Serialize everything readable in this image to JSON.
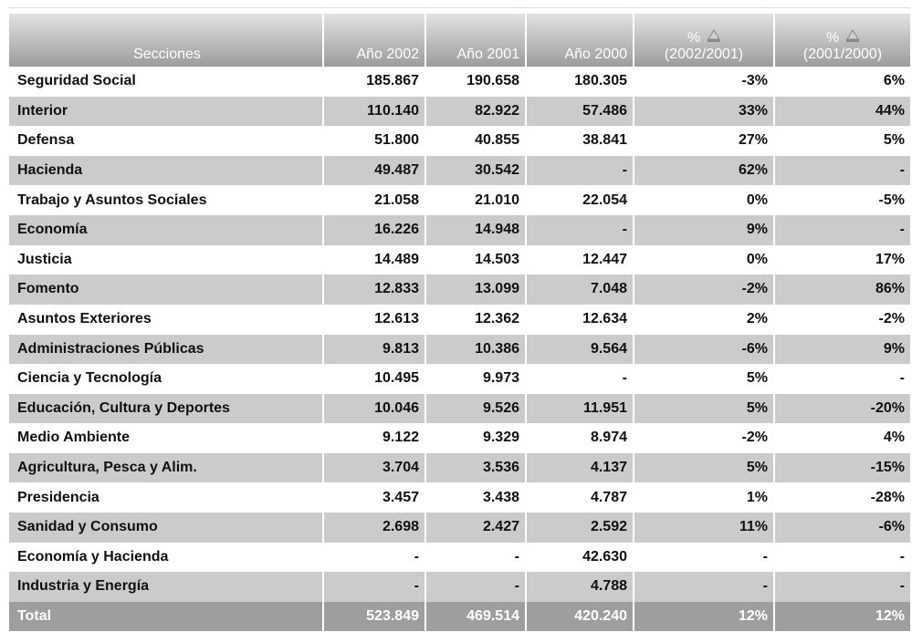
{
  "table": {
    "header": [
      "Secciones",
      "Año 2002",
      "Año 2001",
      "Año 2000"
    ],
    "change_columns": [
      {
        "symbol": "%",
        "period": "(2002/2001)"
      },
      {
        "symbol": "%",
        "period": "(2001/2000)"
      }
    ],
    "rows": [
      [
        "Seguridad Social",
        "185.867",
        "190.658",
        "180.305",
        "-3%",
        "6%"
      ],
      [
        "Interior",
        "110.140",
        "82.922",
        "57.486",
        "33%",
        "44%"
      ],
      [
        "Defensa",
        "51.800",
        "40.855",
        "38.841",
        "27%",
        "5%"
      ],
      [
        "Hacienda",
        "49.487",
        "30.542",
        "-",
        "62%",
        "-"
      ],
      [
        "Trabajo y Asuntos Sociales",
        "21.058",
        "21.010",
        "22.054",
        "0%",
        "-5%"
      ],
      [
        "Economía",
        "16.226",
        "14.948",
        "-",
        "9%",
        "-"
      ],
      [
        "Justicia",
        "14.489",
        "14.503",
        "12.447",
        "0%",
        "17%"
      ],
      [
        "Fomento",
        "12.833",
        "13.099",
        "7.048",
        "-2%",
        "86%"
      ],
      [
        "Asuntos Exteriores",
        "12.613",
        "12.362",
        "12.634",
        "2%",
        "-2%"
      ],
      [
        "Administraciones Públicas",
        "9.813",
        "10.386",
        "9.564",
        "-6%",
        "9%"
      ],
      [
        "Ciencia y Tecnología",
        "10.495",
        "9.973",
        "-",
        "5%",
        "-"
      ],
      [
        "Educación, Cultura y Deportes",
        "10.046",
        "9.526",
        "11.951",
        "5%",
        "-20%"
      ],
      [
        "Medio Ambiente",
        "9.122",
        "9.329",
        "8.974",
        "-2%",
        "4%"
      ],
      [
        "Agricultura, Pesca y Alim.",
        "3.704",
        "3.536",
        "4.137",
        "5%",
        "-15%"
      ],
      [
        "Presidencia",
        "3.457",
        "3.438",
        "4.787",
        "1%",
        "-28%"
      ],
      [
        "Sanidad y Consumo",
        "2.698",
        "2.427",
        "2.592",
        "11%",
        "-6%"
      ],
      [
        "Economía y Hacienda",
        "-",
        "-",
        "42.630",
        "-",
        "-"
      ],
      [
        "Industria y Energía",
        "-",
        "-",
        "4.788",
        "-",
        "-"
      ]
    ],
    "total": [
      "Total",
      "523.849",
      "469.514",
      "420.240",
      "12%",
      "12%"
    ]
  }
}
